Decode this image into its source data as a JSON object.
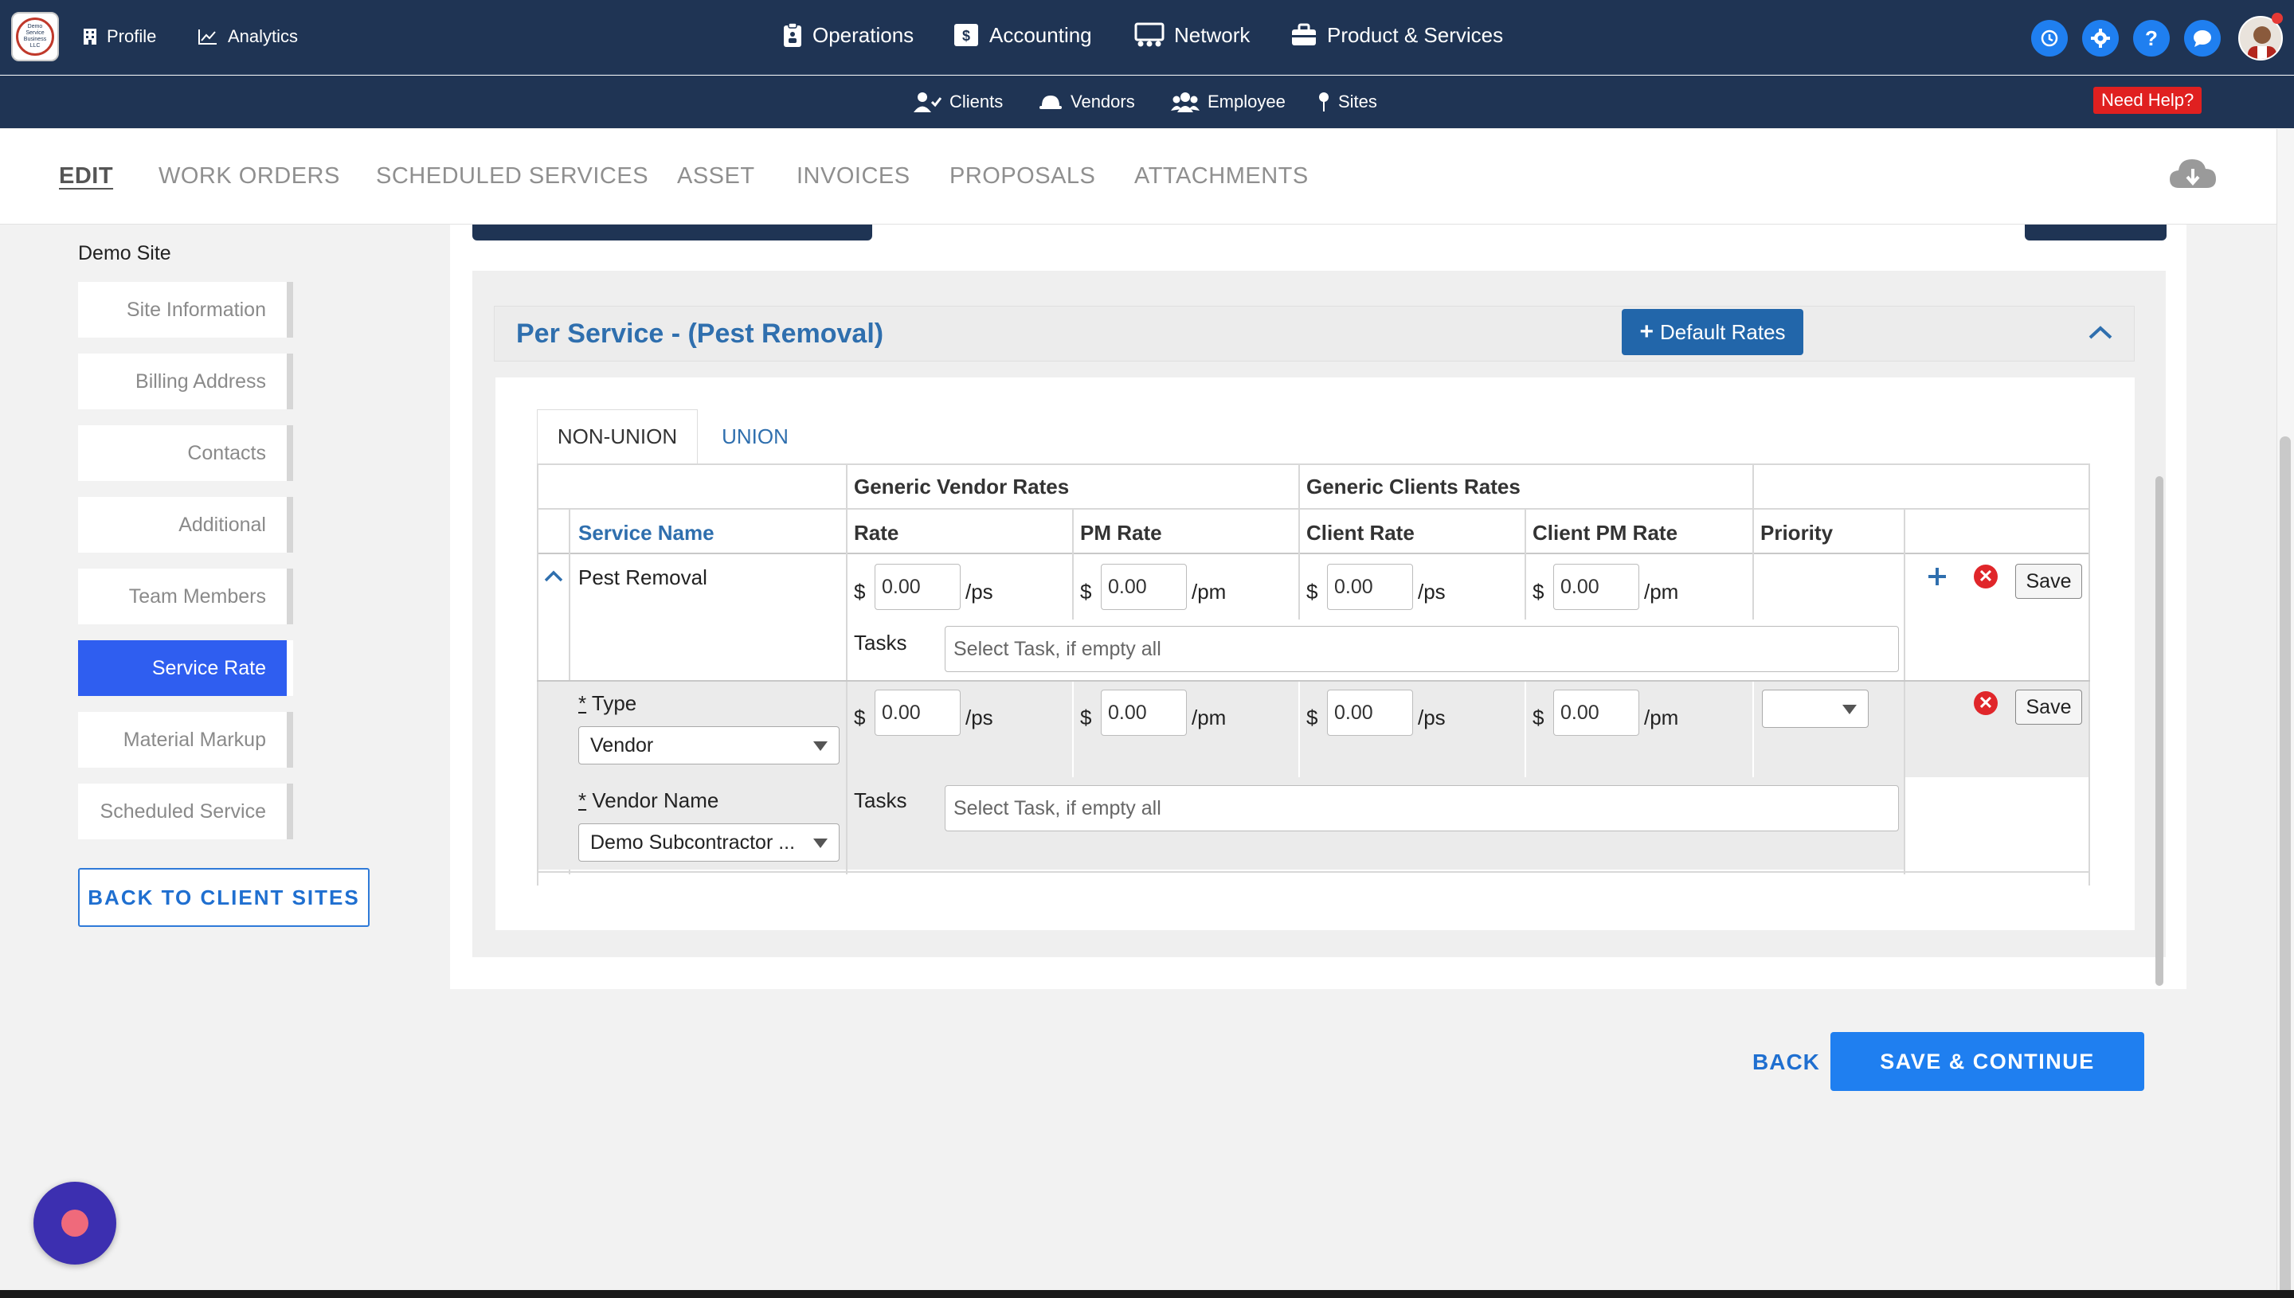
{
  "topnav": {
    "logo_text": "Demo Service Business LLC",
    "profile": "Profile",
    "analytics": "Analytics",
    "operations": "Operations",
    "accounting": "Accounting",
    "network": "Network",
    "product_services": "Product & Services",
    "right_icons": [
      "refresh-icon",
      "gear-icon",
      "help-icon",
      "chat-icon",
      "avatar"
    ]
  },
  "subnav": {
    "clients": "Clients",
    "vendors": "Vendors",
    "employee": "Employee",
    "sites": "Sites",
    "need_help": "Need Help?"
  },
  "tabs": [
    "EDIT",
    "WORK ORDERS",
    "SCHEDULED SERVICES",
    "ASSET",
    "INVOICES",
    "PROPOSALS",
    "ATTACHMENTS"
  ],
  "sidebar": {
    "site_title": "Demo Site",
    "items": [
      {
        "label": "Site Information"
      },
      {
        "label": "Billing Address"
      },
      {
        "label": "Contacts"
      },
      {
        "label": "Additional"
      },
      {
        "label": "Team Members"
      },
      {
        "label": "Service Rate"
      },
      {
        "label": "Material Markup"
      },
      {
        "label": "Scheduled Service"
      }
    ],
    "active_item": "Service Rate",
    "back_button": "BACK TO CLIENT SITES"
  },
  "section": {
    "title": "Per Service - (Pest Removal)",
    "default_rates": "Default Rates",
    "subtabs": [
      "NON-UNION",
      "UNION"
    ],
    "group_headers": {
      "vendor": "Generic Vendor Rates",
      "client": "Generic Clients Rates"
    },
    "columns": {
      "service_name": "Service Name",
      "rate": "Rate",
      "pm_rate": "PM Rate",
      "client_rate": "Client Rate",
      "client_pm_rate": "Client PM Rate",
      "priority": "Priority"
    },
    "currency": "$",
    "unit_ps": "/ps",
    "unit_pm": "/pm",
    "tasks_label": "Tasks",
    "task_placeholder": "Select Task, if empty all",
    "row1": {
      "service": "Pest Removal",
      "rate": "0.00",
      "pm_rate": "0.00",
      "client_rate": "0.00",
      "client_pm_rate": "0.00",
      "save": "Save"
    },
    "row2": {
      "type_label": "Type",
      "type_value": "Vendor",
      "vendor_label": "Vendor Name",
      "vendor_value": "Demo Subcontractor ...",
      "rate": "0.00",
      "pm_rate": "0.00",
      "client_rate": "0.00",
      "client_pm_rate": "0.00",
      "priority": "",
      "save": "Save",
      "required_mark": "*"
    }
  },
  "footer": {
    "back": "BACK",
    "save_continue": "SAVE & CONTINUE"
  },
  "colors": {
    "nav_bg": "#1f3454",
    "accent_blue": "#1f7ff0",
    "active_side": "#2f5ef0",
    "link_blue": "#2f6fae",
    "danger": "#e0262a"
  }
}
